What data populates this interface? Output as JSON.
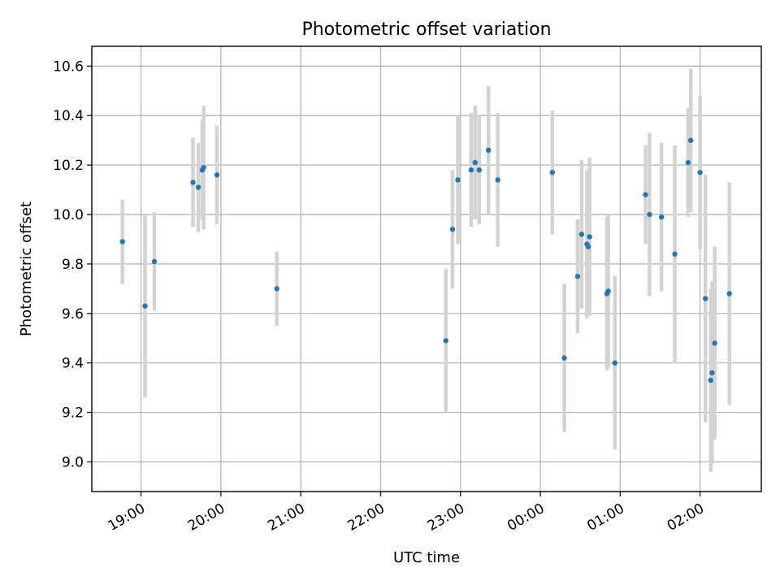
{
  "chart_data": {
    "type": "scatter",
    "title": "Photometric offset variation",
    "xlabel": "UTC time",
    "ylabel": "Photometric offset",
    "x_unit": "UTC time (HH:MM)",
    "xlim": [
      "18:23",
      "02:46"
    ],
    "ylim": [
      8.88,
      10.68
    ],
    "xticks": [
      "19:00",
      "20:00",
      "21:00",
      "22:00",
      "23:00",
      "00:00",
      "01:00",
      "02:00"
    ],
    "yticks": [
      "9.0",
      "9.2",
      "9.4",
      "9.6",
      "9.8",
      "10.0",
      "10.2",
      "10.4",
      "10.6"
    ],
    "grid": true,
    "colors": {
      "point": "#1f77b4",
      "errorbar": "#d3d3d3",
      "grid": "#b0b0b0"
    },
    "series": [
      {
        "points": [
          {
            "x": "18:46",
            "y": 9.89,
            "err": 0.17
          },
          {
            "x": "19:03",
            "y": 9.63,
            "err": 0.37
          },
          {
            "x": "19:10",
            "y": 9.81,
            "err": 0.2
          },
          {
            "x": "19:39",
            "y": 10.13,
            "err": 0.18
          },
          {
            "x": "19:43",
            "y": 10.11,
            "err": 0.18
          },
          {
            "x": "19:46",
            "y": 10.18,
            "err": 0.2
          },
          {
            "x": "19:47",
            "y": 10.19,
            "err": 0.25
          },
          {
            "x": "19:57",
            "y": 10.16,
            "err": 0.2
          },
          {
            "x": "20:42",
            "y": 9.7,
            "err": 0.15
          },
          {
            "x": "22:49",
            "y": 9.49,
            "err": 0.29
          },
          {
            "x": "22:54",
            "y": 9.94,
            "err": 0.24
          },
          {
            "x": "22:58",
            "y": 10.14,
            "err": 0.26
          },
          {
            "x": "23:08",
            "y": 10.18,
            "err": 0.23
          },
          {
            "x": "23:11",
            "y": 10.21,
            "err": 0.23
          },
          {
            "x": "23:14",
            "y": 10.18,
            "err": 0.22
          },
          {
            "x": "23:21",
            "y": 10.26,
            "err": 0.26
          },
          {
            "x": "23:28",
            "y": 10.14,
            "err": 0.27
          },
          {
            "x": "00:09",
            "y": 10.17,
            "err": 0.25
          },
          {
            "x": "00:18",
            "y": 9.42,
            "err": 0.3
          },
          {
            "x": "00:28",
            "y": 9.75,
            "err": 0.23
          },
          {
            "x": "00:31",
            "y": 9.92,
            "err": 0.3
          },
          {
            "x": "00:35",
            "y": 9.88,
            "err": 0.3
          },
          {
            "x": "00:36",
            "y": 9.87,
            "err": 0.23
          },
          {
            "x": "00:37",
            "y": 9.91,
            "err": 0.32
          },
          {
            "x": "00:50",
            "y": 9.68,
            "err": 0.31
          },
          {
            "x": "00:51",
            "y": 9.69,
            "err": 0.31
          },
          {
            "x": "00:56",
            "y": 9.4,
            "err": 0.35
          },
          {
            "x": "01:19",
            "y": 10.08,
            "err": 0.2
          },
          {
            "x": "01:22",
            "y": 10.0,
            "err": 0.33
          },
          {
            "x": "01:31",
            "y": 9.99,
            "err": 0.3
          },
          {
            "x": "01:41",
            "y": 9.84,
            "err": 0.44
          },
          {
            "x": "01:51",
            "y": 10.21,
            "err": 0.22
          },
          {
            "x": "01:53",
            "y": 10.3,
            "err": 0.29
          },
          {
            "x": "02:00",
            "y": 10.17,
            "err": 0.31
          },
          {
            "x": "02:04",
            "y": 9.66,
            "err": 0.5
          },
          {
            "x": "02:08",
            "y": 9.33,
            "err": 0.37
          },
          {
            "x": "02:09",
            "y": 9.36,
            "err": 0.37
          },
          {
            "x": "02:11",
            "y": 9.48,
            "err": 0.39
          },
          {
            "x": "02:22",
            "y": 9.68,
            "err": 0.45
          }
        ]
      }
    ]
  }
}
